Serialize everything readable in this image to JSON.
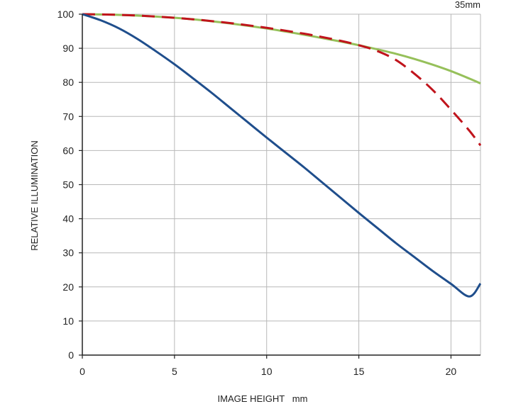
{
  "chart_data": {
    "type": "line",
    "title": "35mm",
    "xlabel": "IMAGE HEIGHT   mm",
    "ylabel": "RELATIVE ILLUMINATION",
    "xlim": [
      0,
      21.6
    ],
    "ylim": [
      0,
      100
    ],
    "xticks": [
      0,
      5,
      10,
      15,
      20
    ],
    "yticks": [
      0,
      10,
      20,
      30,
      40,
      50,
      60,
      70,
      80,
      90,
      100
    ],
    "grid": true,
    "colors": {
      "grid": "#b8b8b8",
      "axis": "#222222"
    },
    "series": [
      {
        "color": "#1f4e8c",
        "dash": "solid",
        "x": [
          0,
          1,
          2,
          3,
          4,
          5,
          6,
          7,
          8,
          9,
          10,
          11,
          12,
          13,
          14,
          15,
          16,
          17,
          18,
          19,
          20,
          21,
          21.6
        ],
        "values": [
          100,
          98.2,
          95.8,
          92.7,
          89.1,
          85.3,
          81.2,
          77.0,
          72.6,
          68.2,
          63.8,
          59.5,
          55.2,
          50.7,
          46.2,
          41.7,
          37.3,
          32.9,
          28.8,
          24.7,
          20.9,
          17.2,
          21
        ]
      },
      {
        "color": "#c0141c",
        "dash": "dashed",
        "x": [
          0,
          2,
          4,
          6,
          8,
          10,
          12,
          13,
          14,
          15,
          16,
          17,
          18,
          19,
          20,
          21,
          21.6
        ],
        "values": [
          100,
          99.8,
          99.3,
          98.5,
          97.4,
          96.0,
          94.3,
          93.3,
          92.2,
          90.9,
          89.2,
          86.6,
          82.6,
          77.8,
          72.0,
          65.8,
          61.5
        ]
      },
      {
        "color": "#96c05a",
        "dash": "solid",
        "x": [
          0,
          2,
          4,
          6,
          8,
          10,
          12,
          13,
          14,
          15,
          16,
          17,
          18,
          19,
          20,
          21,
          21.6
        ],
        "values": [
          100,
          99.8,
          99.3,
          98.5,
          97.3,
          95.8,
          94.0,
          93.0,
          92.0,
          90.9,
          89.7,
          88.4,
          86.9,
          85.2,
          83.3,
          81.1,
          79.7
        ]
      }
    ]
  }
}
